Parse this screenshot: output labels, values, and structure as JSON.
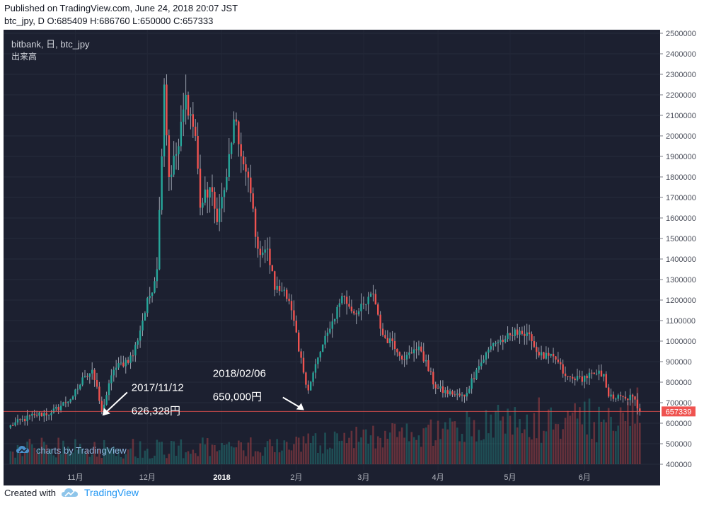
{
  "header": {
    "published": "Published on TradingView.com, June 24, 2018 20:07 JST",
    "ohlc": "btc_jpy, D O:685409 H:686760 L:650000 C:657333"
  },
  "chart": {
    "symbol_label": "bitbank, 日, btc_jpy",
    "volume_label": "出来高",
    "watermark": "charts by TradingView",
    "price_badge": "657339"
  },
  "footer": {
    "created_with": "Created with",
    "brand": "TradingView"
  },
  "colors": {
    "background": "#1c2030",
    "up": "#26a69a",
    "down": "#ef5350",
    "wick": "#9aa0ad",
    "annotation": "#ffffff"
  },
  "chart_data": {
    "type": "candlestick",
    "title": "",
    "xlabel": "",
    "ylabel": "",
    "ylim": [
      400000,
      2500000
    ],
    "y_ticks": [
      2500000,
      2400000,
      2300000,
      2200000,
      2100000,
      2000000,
      1900000,
      1800000,
      1700000,
      1600000,
      1500000,
      1400000,
      1300000,
      1200000,
      1100000,
      1000000,
      900000,
      800000,
      700000,
      600000,
      500000,
      400000
    ],
    "x_ticks": [
      {
        "label": "11月",
        "date": "2017-11-01"
      },
      {
        "label": "12月",
        "date": "2017-12-01"
      },
      {
        "label": "2018",
        "date": "2018-01-01"
      },
      {
        "label": "2月",
        "date": "2018-02-01"
      },
      {
        "label": "3月",
        "date": "2018-03-01"
      },
      {
        "label": "4月",
        "date": "2018-04-01"
      },
      {
        "label": "5月",
        "date": "2018-05-01"
      },
      {
        "label": "6月",
        "date": "2018-06-01"
      }
    ],
    "price_path": [
      [
        "2017-10-05",
        590000
      ],
      [
        "2017-10-15",
        640000
      ],
      [
        "2017-10-22",
        650000
      ],
      [
        "2017-10-31",
        730000
      ],
      [
        "2017-11-05",
        830000
      ],
      [
        "2017-11-08",
        860000
      ],
      [
        "2017-11-12",
        660000
      ],
      [
        "2017-11-17",
        860000
      ],
      [
        "2017-11-25",
        930000
      ],
      [
        "2017-11-29",
        1100000
      ],
      [
        "2017-12-05",
        1350000
      ],
      [
        "2017-12-07",
        1900000
      ],
      [
        "2017-12-08",
        2250000
      ],
      [
        "2017-12-10",
        1800000
      ],
      [
        "2017-12-14",
        1950000
      ],
      [
        "2017-12-17",
        2200000
      ],
      [
        "2017-12-21",
        2000000
      ],
      [
        "2017-12-23",
        1650000
      ],
      [
        "2017-12-27",
        1750000
      ],
      [
        "2017-12-30",
        1580000
      ],
      [
        "2018-01-03",
        1800000
      ],
      [
        "2018-01-06",
        2080000
      ],
      [
        "2018-01-09",
        1900000
      ],
      [
        "2018-01-13",
        1720000
      ],
      [
        "2018-01-16",
        1450000
      ],
      [
        "2018-01-20",
        1450000
      ],
      [
        "2018-01-23",
        1250000
      ],
      [
        "2018-01-27",
        1250000
      ],
      [
        "2018-01-30",
        1150000
      ],
      [
        "2018-02-02",
        950000
      ],
      [
        "2018-02-06",
        760000
      ],
      [
        "2018-02-10",
        920000
      ],
      [
        "2018-02-15",
        1060000
      ],
      [
        "2018-02-20",
        1220000
      ],
      [
        "2018-02-26",
        1130000
      ],
      [
        "2018-03-02",
        1180000
      ],
      [
        "2018-03-05",
        1230000
      ],
      [
        "2018-03-09",
        1030000
      ],
      [
        "2018-03-13",
        1000000
      ],
      [
        "2018-03-18",
        910000
      ],
      [
        "2018-03-22",
        960000
      ],
      [
        "2018-03-25",
        950000
      ],
      [
        "2018-03-31",
        770000
      ],
      [
        "2018-04-07",
        740000
      ],
      [
        "2018-04-12",
        730000
      ],
      [
        "2018-04-17",
        860000
      ],
      [
        "2018-04-24",
        990000
      ],
      [
        "2018-04-29",
        1010000
      ],
      [
        "2018-05-05",
        1050000
      ],
      [
        "2018-05-10",
        1000000
      ],
      [
        "2018-05-13",
        930000
      ],
      [
        "2018-05-20",
        910000
      ],
      [
        "2018-05-24",
        830000
      ],
      [
        "2018-05-28",
        810000
      ],
      [
        "2018-06-05",
        840000
      ],
      [
        "2018-06-09",
        840000
      ],
      [
        "2018-06-11",
        730000
      ],
      [
        "2018-06-18",
        720000
      ],
      [
        "2018-06-21",
        730000
      ],
      [
        "2018-06-24",
        657333
      ]
    ],
    "last_price": 657339,
    "annotations": [
      {
        "date_text": "2017/11/12",
        "price_text": "626,328円",
        "date": "2017-11-12",
        "price": 626328
      },
      {
        "date_text": "2018/02/06",
        "price_text": "650,000円",
        "date": "2018-02-06",
        "price": 650000
      }
    ],
    "volume_series": "volume bars shown in lower panel, no printed values"
  }
}
